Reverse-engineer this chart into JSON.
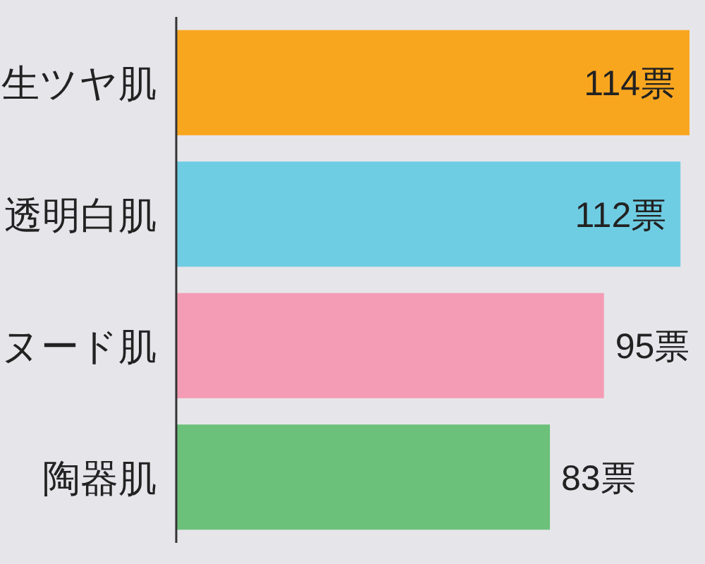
{
  "chart_data": {
    "type": "bar",
    "orientation": "horizontal",
    "categories": [
      "生ツヤ肌",
      "透明白肌",
      "ヌード肌",
      "陶器肌"
    ],
    "values": [
      114,
      112,
      95,
      83
    ],
    "colors": [
      "#f9a61f",
      "#6fcde3",
      "#f49cb5",
      "#6cc17a"
    ],
    "value_labels": [
      "114票",
      "112票",
      "95票",
      "83票"
    ]
  }
}
